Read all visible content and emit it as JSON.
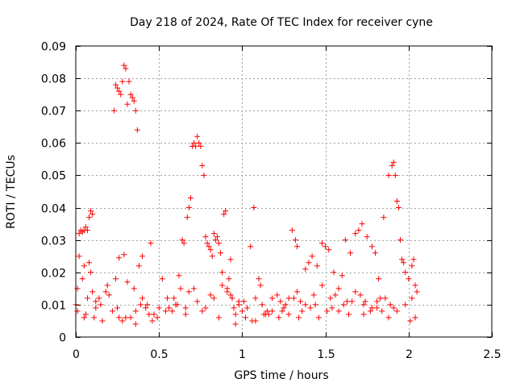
{
  "chart_data": {
    "type": "scatter",
    "title": "Day 218 of 2024, Rate Of TEC Index for receiver cyne",
    "xlabel": "GPS time / hours",
    "ylabel": "ROTI / TECUs",
    "xlim": [
      0,
      2.5
    ],
    "ylim": [
      0,
      0.09
    ],
    "xticks": [
      0,
      0.5,
      1,
      1.5,
      2,
      2.5
    ],
    "xtick_labels": [
      "0",
      "0.5",
      "1",
      "1.5",
      "2",
      "2.5"
    ],
    "yticks": [
      0,
      0.01,
      0.02,
      0.03,
      0.04,
      0.05,
      0.06,
      0.07,
      0.08,
      0.09
    ],
    "ytick_labels": [
      "0",
      "0.01",
      "0.02",
      "0.03",
      "0.04",
      "0.05",
      "0.06",
      "0.07",
      "0.08",
      "0.09"
    ],
    "grid": true,
    "marker": "+",
    "color": "#ff0000",
    "series": [
      {
        "name": "ROTI",
        "x": [
          0.02,
          0.03,
          0.04,
          0.05,
          0.06,
          0.07,
          0.08,
          0.09,
          0.02,
          0.05,
          0.08,
          0.1,
          0.01,
          0.0,
          0.01,
          0.05,
          0.07,
          0.1,
          0.12,
          0.11,
          0.23,
          0.24,
          0.25,
          0.26,
          0.27,
          0.28,
          0.29,
          0.3,
          0.31,
          0.32,
          0.33,
          0.34,
          0.35,
          0.36,
          0.37,
          0.26,
          0.29,
          0.36,
          0.38,
          0.4,
          0.45,
          0.12,
          0.15,
          0.2,
          0.25,
          0.3,
          0.35,
          0.4,
          0.42,
          0.47,
          0.52,
          0.55,
          0.6,
          0.62,
          0.64,
          0.65,
          0.67,
          0.68,
          0.69,
          0.7,
          0.71,
          0.72,
          0.73,
          0.74,
          0.75,
          0.76,
          0.77,
          0.78,
          0.79,
          0.8,
          0.81,
          0.82,
          0.83,
          0.84,
          0.85,
          0.86,
          0.87,
          0.88,
          0.89,
          0.9,
          0.91,
          0.92,
          0.93,
          0.94,
          0.95,
          0.96,
          0.98,
          1.0,
          1.02,
          1.05,
          1.07,
          1.08,
          1.1,
          1.12,
          1.15,
          1.18,
          1.22,
          1.25,
          1.28,
          1.3,
          1.32,
          1.33,
          1.35,
          1.38,
          1.4,
          1.42,
          1.45,
          1.48,
          1.5,
          1.52,
          1.55,
          1.58,
          1.6,
          1.62,
          1.65,
          1.68,
          1.7,
          1.72,
          1.75,
          1.78,
          1.8,
          1.82,
          1.85,
          1.88,
          1.9,
          1.91,
          1.92,
          1.93,
          1.94,
          1.95,
          1.96,
          1.97,
          1.98,
          2.0,
          2.02,
          2.03,
          2.04,
          2.05,
          1.86,
          1.89,
          1.81,
          1.77,
          1.73,
          1.66,
          1.56,
          1.46,
          1.36,
          1.26,
          1.16,
          1.06,
          0.96,
          0.86,
          0.76,
          0.66,
          0.56,
          0.46,
          0.36,
          0.26,
          0.16,
          0.06,
          0.14,
          0.18,
          0.22,
          0.28,
          0.33,
          0.43,
          0.5,
          0.58,
          0.63,
          0.68,
          0.73,
          0.78,
          0.83,
          0.88,
          0.93,
          0.98,
          1.03,
          1.08,
          1.13,
          1.18,
          1.23,
          1.28,
          1.33,
          1.38,
          1.43,
          1.48,
          1.53,
          1.58,
          1.63,
          1.68,
          1.73,
          1.78,
          1.83,
          1.88,
          1.93,
          1.98,
          2.01,
          2.04,
          0.04,
          0.09,
          0.19,
          0.24,
          0.31,
          0.39,
          0.44,
          0.49,
          0.54,
          0.59,
          0.61,
          0.66,
          0.71,
          0.81,
          0.91,
          1.01,
          1.11,
          1.21,
          1.31,
          1.41,
          1.51,
          1.61,
          1.71,
          1.81,
          1.91,
          2.02,
          1.14,
          1.24,
          1.34,
          1.44,
          1.54,
          1.64,
          1.74,
          1.84
        ],
        "y": [
          0.032,
          0.033,
          0.0325,
          0.033,
          0.034,
          0.033,
          0.037,
          0.039,
          0.025,
          0.022,
          0.023,
          0.038,
          0.015,
          0.01,
          0.008,
          0.006,
          0.012,
          0.014,
          0.009,
          0.006,
          0.07,
          0.078,
          0.077,
          0.076,
          0.075,
          0.079,
          0.084,
          0.083,
          0.072,
          0.079,
          0.075,
          0.074,
          0.073,
          0.07,
          0.064,
          0.0245,
          0.0255,
          0.008,
          0.022,
          0.025,
          0.029,
          0.011,
          0.01,
          0.013,
          0.009,
          0.006,
          0.015,
          0.012,
          0.009,
          0.007,
          0.018,
          0.012,
          0.01,
          0.019,
          0.03,
          0.029,
          0.037,
          0.04,
          0.043,
          0.059,
          0.06,
          0.059,
          0.062,
          0.06,
          0.059,
          0.053,
          0.05,
          0.031,
          0.029,
          0.028,
          0.027,
          0.025,
          0.032,
          0.03,
          0.031,
          0.029,
          0.026,
          0.02,
          0.038,
          0.039,
          0.015,
          0.018,
          0.024,
          0.012,
          0.009,
          0.007,
          0.011,
          0.008,
          0.006,
          0.028,
          0.04,
          0.005,
          0.018,
          0.01,
          0.008,
          0.012,
          0.006,
          0.009,
          0.007,
          0.033,
          0.03,
          0.028,
          0.011,
          0.021,
          0.023,
          0.025,
          0.022,
          0.029,
          0.028,
          0.027,
          0.02,
          0.015,
          0.019,
          0.03,
          0.026,
          0.032,
          0.033,
          0.035,
          0.031,
          0.028,
          0.026,
          0.018,
          0.037,
          0.05,
          0.053,
          0.054,
          0.05,
          0.042,
          0.04,
          0.03,
          0.024,
          0.023,
          0.02,
          0.018,
          0.022,
          0.024,
          0.016,
          0.014,
          0.012,
          0.01,
          0.009,
          0.008,
          0.007,
          0.011,
          0.013,
          0.006,
          0.008,
          0.01,
          0.007,
          0.005,
          0.004,
          0.006,
          0.008,
          0.007,
          0.009,
          0.005,
          0.004,
          0.006,
          0.005,
          0.007,
          0.012,
          0.014,
          0.008,
          0.005,
          0.006,
          0.01,
          0.009,
          0.008,
          0.015,
          0.014,
          0.011,
          0.009,
          0.012,
          0.016,
          0.013,
          0.01,
          0.009,
          0.012,
          0.007,
          0.008,
          0.011,
          0.012,
          0.014,
          0.01,
          0.013,
          0.016,
          0.012,
          0.008,
          0.011,
          0.014,
          0.01,
          0.009,
          0.012,
          0.006,
          0.008,
          0.01,
          0.005,
          0.006,
          0.018,
          0.02,
          0.016,
          0.018,
          0.017,
          0.01,
          0.007,
          0.006,
          0.008,
          0.012,
          0.01,
          0.009,
          0.015,
          0.013,
          0.014,
          0.011,
          0.016,
          0.013,
          0.012,
          0.009,
          0.008,
          0.01,
          0.013,
          0.011,
          0.009,
          0.012,
          0.007,
          0.008,
          0.006,
          0.01,
          0.009,
          0.007,
          0.011,
          0.008
        ]
      }
    ]
  }
}
